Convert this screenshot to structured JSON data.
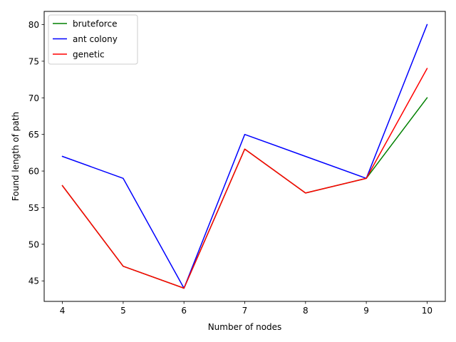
{
  "chart_data": {
    "type": "line",
    "title": "",
    "xlabel": "Number of nodes",
    "ylabel": "Found length of path",
    "x": [
      4,
      5,
      6,
      7,
      8,
      9,
      10
    ],
    "xlim": [
      3.7,
      10.3
    ],
    "ylim": [
      42.2,
      81.8
    ],
    "x_ticks": [
      4,
      5,
      6,
      7,
      8,
      9,
      10
    ],
    "y_ticks": [
      45,
      50,
      55,
      60,
      65,
      70,
      75,
      80
    ],
    "grid": false,
    "legend_position": "upper-left",
    "series": [
      {
        "name": "bruteforce",
        "color": "#008000",
        "values": [
          58,
          47,
          44,
          63,
          57,
          59,
          70
        ]
      },
      {
        "name": "ant colony",
        "color": "#0000ff",
        "values": [
          62,
          59,
          44,
          65,
          62,
          59,
          80
        ]
      },
      {
        "name": "genetic",
        "color": "#ff0000",
        "values": [
          58,
          47,
          44,
          63,
          57,
          59,
          74
        ]
      }
    ]
  }
}
